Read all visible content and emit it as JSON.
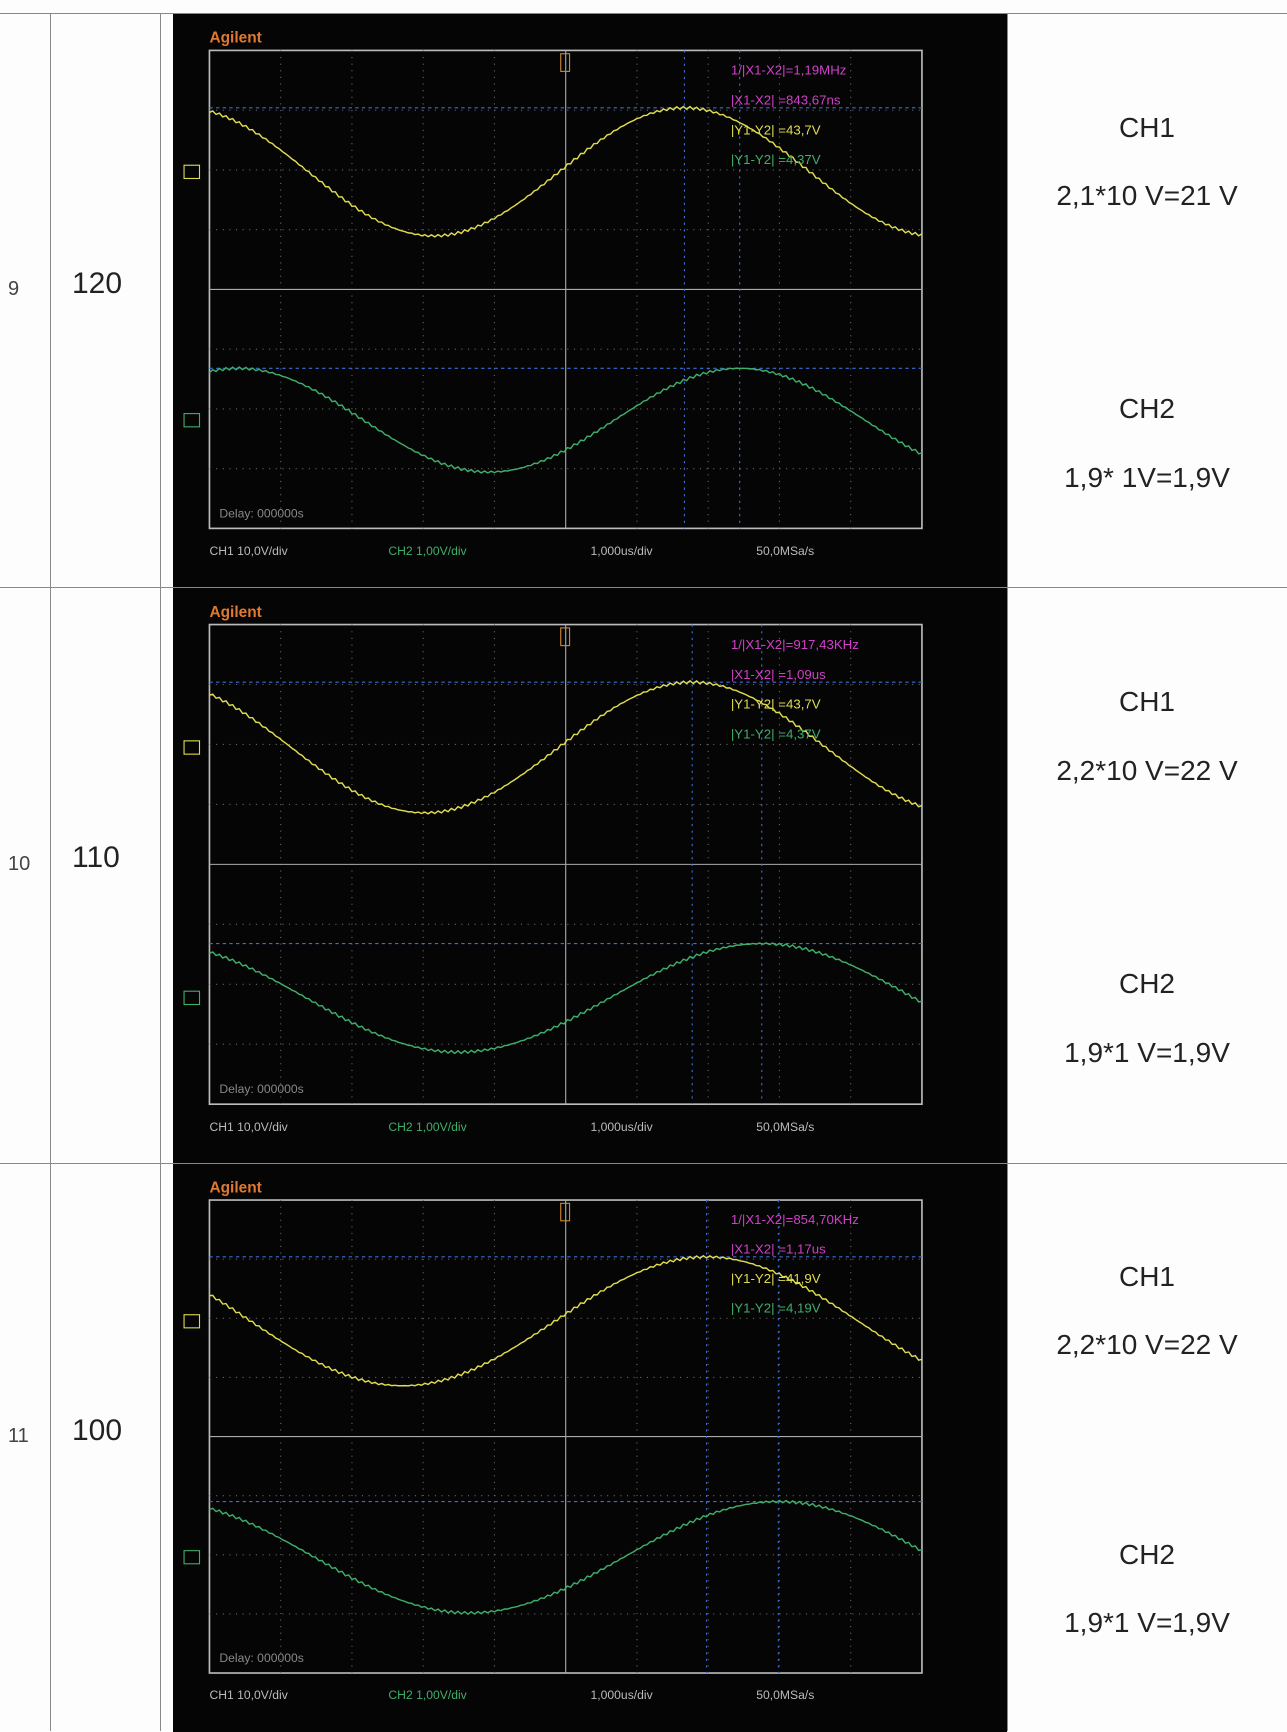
{
  "rows": [
    {
      "number": "9",
      "value": "120",
      "scope": {
        "brand": "Agilent",
        "readouts": [
          "1/|X1-X2|=1,19MHz",
          "|X1-X2| =843,67ns",
          "|Y1-Y2| =43,7V",
          "|Y1-Y2| =4,37V"
        ],
        "delay": "Delay: 000000s",
        "footer": [
          "CH1 10,0V/div",
          "CH2 1,00V/div",
          "1,000us/div",
          "50,0MSa/s"
        ]
      },
      "ch1": {
        "label": "CH1",
        "reading": "2,1*10 V=21 V"
      },
      "ch2": {
        "label": "CH2",
        "reading": "1,9* 1V=1,9V"
      }
    },
    {
      "number": "10",
      "value": "110",
      "scope": {
        "brand": "Agilent",
        "readouts": [
          "1/|X1-X2|=917,43KHz",
          "|X1-X2| =1,09us",
          "|Y1-Y2| =43,7V",
          "|Y1-Y2| =4,37V"
        ],
        "delay": "Delay: 000000s",
        "footer": [
          "CH1 10,0V/div",
          "CH2 1,00V/div",
          "1,000us/div",
          "50,0MSa/s"
        ]
      },
      "ch1": {
        "label": "CH1",
        "reading": "2,2*10 V=22 V"
      },
      "ch2": {
        "label": "CH2",
        "reading": "1,9*1 V=1,9V"
      }
    },
    {
      "number": "11",
      "value": "100",
      "scope": {
        "brand": "Agilent",
        "readouts": [
          "1/|X1-X2|=854,70KHz",
          "|X1-X2| =1,17us",
          "|Y1-Y2| =41,9V",
          "|Y1-Y2| =4,19V"
        ],
        "delay": "Delay: 000000s",
        "footer": [
          "CH1 10,0V/div",
          "CH2 1,00V/div",
          "1,000us/div",
          "50,0MSa/s"
        ]
      },
      "ch1": {
        "label": "CH1",
        "reading": "2,2*10 V=22 V"
      },
      "ch2": {
        "label": "CH2",
        "reading": "1,9*1 V=1,9V"
      }
    }
  ]
}
